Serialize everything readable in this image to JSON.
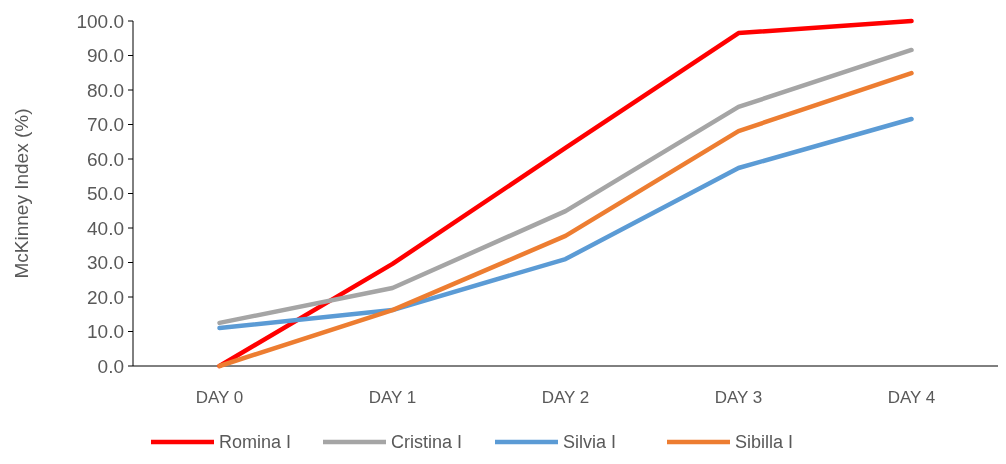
{
  "chart_data": {
    "type": "line",
    "ylabel": "McKinney Index (%)",
    "categories": [
      "DAY 0",
      "DAY 1",
      "DAY 2",
      "DAY 3",
      "DAY 4"
    ],
    "series": [
      {
        "name": "Romina I",
        "color": "#ff0000",
        "values": [
          0,
          29.6,
          63.2,
          96.5,
          100
        ]
      },
      {
        "name": "Cristina I",
        "color": "#a5a5a5",
        "values": [
          12.5,
          22.6,
          44.9,
          75.1,
          91.6
        ]
      },
      {
        "name": "Silvia I",
        "color": "#5b9bd5",
        "values": [
          11.0,
          16.2,
          31.0,
          57.4,
          71.6
        ]
      },
      {
        "name": "Sibilla I",
        "color": "#ed7d31",
        "values": [
          0,
          16.2,
          37.7,
          68.1,
          84.9
        ]
      }
    ],
    "ylim": [
      0,
      100
    ],
    "yticks": [
      {
        "value": 0,
        "label": "0.0"
      },
      {
        "value": 10,
        "label": "10.0"
      },
      {
        "value": 20,
        "label": "20.0"
      },
      {
        "value": 30,
        "label": "30.0"
      },
      {
        "value": 40,
        "label": "40.0"
      },
      {
        "value": 50,
        "label": "50.0"
      },
      {
        "value": 60,
        "label": "60.0"
      },
      {
        "value": 70,
        "label": "70.0"
      },
      {
        "value": 80,
        "label": "80.0"
      },
      {
        "value": 90,
        "label": "90.0"
      },
      {
        "value": 100,
        "label": "100.0"
      }
    ],
    "grid": false,
    "legend": "bottom",
    "marker": "none",
    "line_style": "solid"
  }
}
